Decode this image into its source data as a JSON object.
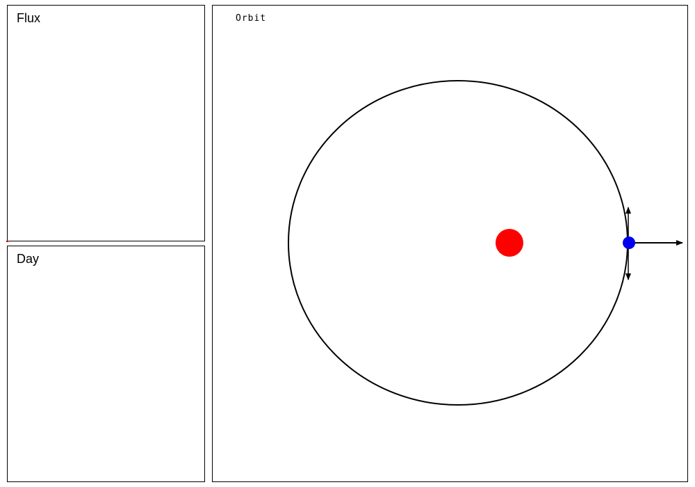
{
  "panels": {
    "flux": {
      "title": "Flux"
    },
    "day": {
      "title": "Day"
    },
    "orbit": {
      "title": "Orbit"
    }
  },
  "colors": {
    "star": "#ff0000",
    "planet": "#0000ee",
    "orbit_path": "#000000",
    "arrow": "#000000",
    "flux_marker": "#cc0000"
  },
  "icons": [
    "star-icon",
    "planet-icon",
    "velocity-arrow-icon"
  ]
}
